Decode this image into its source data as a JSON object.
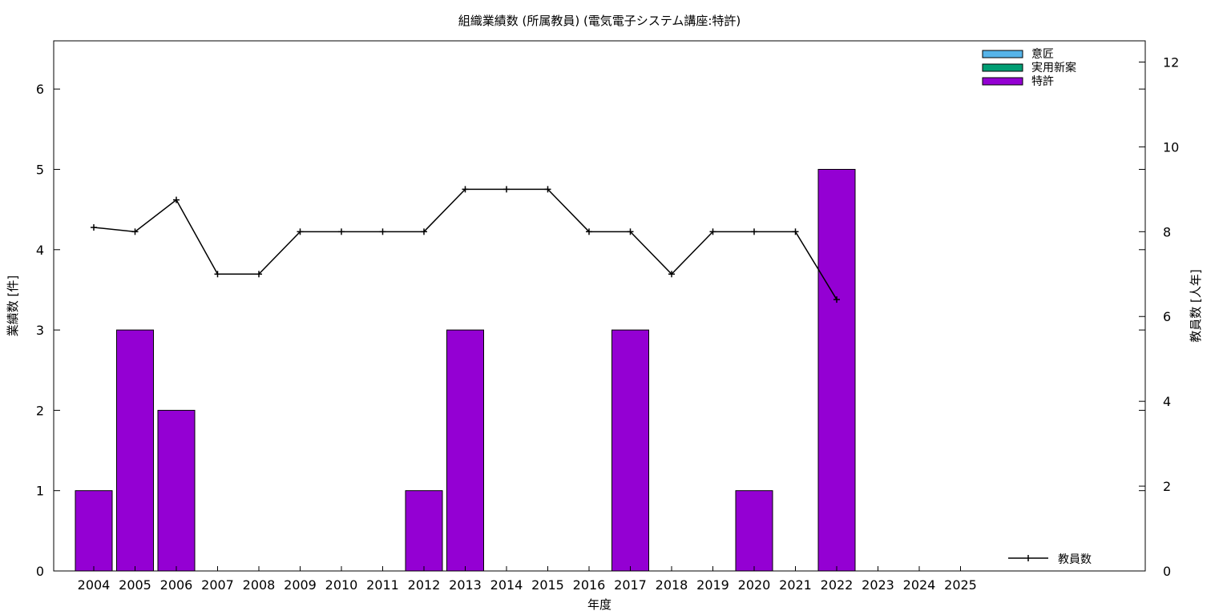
{
  "chart_data": {
    "type": "bar",
    "title": "組織業績数 (所属教員) (電気電子システム講座:特許)",
    "xlabel": "年度",
    "ylabel": "業績数 [件]",
    "y2label": "教員数 [人年]",
    "categories": [
      "2004",
      "2005",
      "2006",
      "2007",
      "2008",
      "2009",
      "2010",
      "2011",
      "2012",
      "2013",
      "2014",
      "2015",
      "2016",
      "2017",
      "2018",
      "2019",
      "2020",
      "2021",
      "2022",
      "2023",
      "2024",
      "2025"
    ],
    "ylim": [
      0,
      6.6
    ],
    "yticks": [
      "0",
      "1",
      "2",
      "3",
      "4",
      "5",
      "6"
    ],
    "y2lim": [
      0,
      12.5
    ],
    "y2ticks": [
      "0",
      "2",
      "4",
      "6",
      "8",
      "10",
      "12"
    ],
    "series": [
      {
        "name": "意匠",
        "color": "#56b4e9",
        "kind": "bar",
        "values": [
          0,
          0,
          0,
          0,
          0,
          0,
          0,
          0,
          0,
          0,
          0,
          0,
          0,
          0,
          0,
          0,
          0,
          0,
          0,
          0,
          0,
          0
        ]
      },
      {
        "name": "実用新案",
        "color": "#009e73",
        "kind": "bar",
        "values": [
          0,
          0,
          0,
          0,
          0,
          0,
          0,
          0,
          0,
          0,
          0,
          0,
          0,
          0,
          0,
          0,
          0,
          0,
          0,
          0,
          0,
          0
        ]
      },
      {
        "name": "特許",
        "color": "#9400d3",
        "kind": "bar",
        "values": [
          1,
          3,
          2,
          0,
          0,
          0,
          0,
          0,
          1,
          3,
          0,
          0,
          0,
          3,
          0,
          0,
          1,
          0,
          5,
          0,
          0,
          0
        ]
      }
    ],
    "line_series": {
      "name": "教員数",
      "color": "#000000",
      "axis": "y2",
      "values": [
        8.1,
        8.0,
        8.75,
        7.0,
        7.0,
        8.0,
        8.0,
        8.0,
        8.0,
        9.0,
        9.0,
        9.0,
        8.0,
        8.0,
        7.0,
        8.0,
        8.0,
        8.0,
        6.4
      ]
    },
    "legend_position": "top-right (bars), bottom-right (line)",
    "grid": false
  }
}
